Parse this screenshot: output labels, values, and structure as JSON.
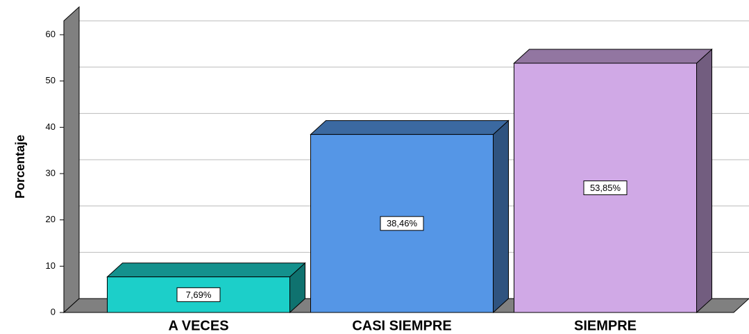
{
  "chart_data": {
    "type": "bar3d",
    "ylabel": "Porcentaje",
    "categories": [
      "A VECES",
      "CASI SIEMPRE",
      "SIEMPRE"
    ],
    "values": [
      7.69,
      38.46,
      53.85
    ],
    "value_labels": [
      "7,69%",
      "38,46%",
      "53,85%"
    ],
    "colors": [
      "#1ccfc9",
      "#5596e6",
      "#d0a9e6"
    ],
    "ylim": [
      0,
      63
    ],
    "yticks": [
      0,
      10,
      20,
      30,
      40,
      50,
      60
    ],
    "grid": true
  }
}
